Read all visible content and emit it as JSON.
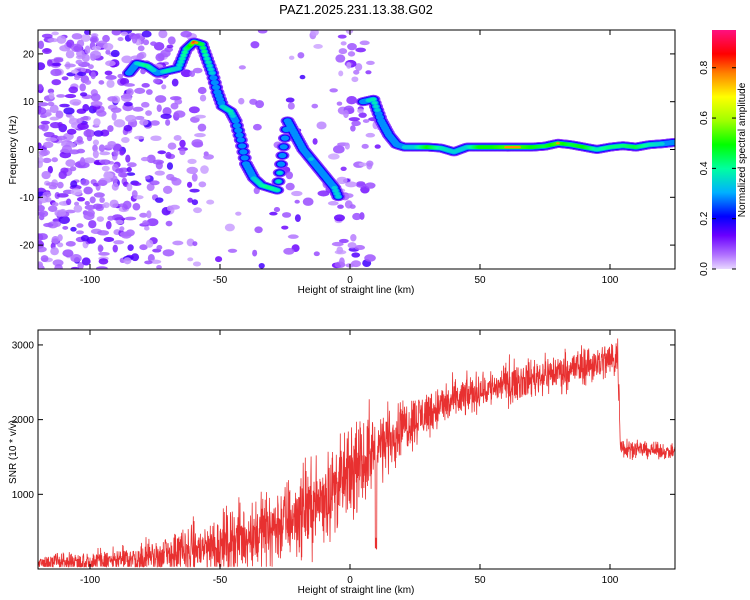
{
  "title": "PAZ1.2025.231.13.38.G02",
  "chart_data": [
    {
      "type": "heatmap",
      "xlabel": "Height of straight line (km)",
      "ylabel": "Frequency (Hz)",
      "xlim": [
        -120,
        125
      ],
      "ylim": [
        -25,
        25
      ],
      "xticks": [
        -100,
        -50,
        0,
        50,
        100
      ],
      "yticks": [
        -20,
        -10,
        0,
        10,
        20
      ],
      "colorbar": {
        "label": "Normalized spectral amplitude",
        "range": [
          0.0,
          0.95
        ],
        "ticks": [
          0.0,
          0.2,
          0.4,
          0.6,
          0.8
        ]
      },
      "ridge": [
        [
          -85,
          16,
          0.35
        ],
        [
          -82,
          18,
          0.45
        ],
        [
          -78,
          17.5,
          0.55
        ],
        [
          -74,
          16,
          0.4
        ],
        [
          -70,
          16.5,
          0.5
        ],
        [
          -66,
          17,
          0.45
        ],
        [
          -63,
          21,
          0.55
        ],
        [
          -60,
          22.5,
          0.75
        ],
        [
          -57,
          22,
          0.6
        ],
        [
          -55,
          19,
          0.5
        ],
        [
          -53,
          16,
          0.45
        ],
        [
          -51,
          12,
          0.4
        ],
        [
          -49,
          9,
          0.45
        ],
        [
          -46,
          8,
          0.5
        ],
        [
          -44,
          6,
          0.4
        ],
        [
          -42,
          2,
          0.4
        ],
        [
          -40,
          -3,
          0.4
        ],
        [
          -37,
          -6,
          0.45
        ],
        [
          -34,
          -7.5,
          0.5
        ],
        [
          -31,
          -8,
          0.55
        ],
        [
          -28,
          -8.5,
          0.5
        ],
        [
          -24,
          6,
          0.35
        ],
        [
          -21,
          3,
          0.35
        ],
        [
          -18,
          0,
          0.4
        ],
        [
          -15,
          -2,
          0.45
        ],
        [
          -12,
          -4,
          0.4
        ],
        [
          -9,
          -6,
          0.4
        ],
        [
          -6,
          -8,
          0.45
        ],
        [
          -4,
          -10.5,
          0.45
        ],
        [
          5,
          10,
          0.4
        ],
        [
          9,
          10.5,
          0.5
        ],
        [
          12,
          6,
          0.4
        ],
        [
          15,
          3,
          0.4
        ],
        [
          18,
          1,
          0.4
        ],
        [
          21,
          0.5,
          0.45
        ],
        [
          25,
          0.5,
          0.45
        ],
        [
          30,
          0.5,
          0.65
        ],
        [
          35,
          0.3,
          0.5
        ],
        [
          40,
          -0.5,
          0.45
        ],
        [
          45,
          0.5,
          0.45
        ],
        [
          50,
          0.5,
          0.65
        ],
        [
          55,
          0.5,
          0.65
        ],
        [
          60,
          0.5,
          0.7
        ],
        [
          65,
          0.5,
          0.7
        ],
        [
          70,
          0.5,
          0.65
        ],
        [
          75,
          0.7,
          0.6
        ],
        [
          80,
          1.3,
          0.7
        ],
        [
          85,
          1.0,
          0.6
        ],
        [
          90,
          0.5,
          0.65
        ],
        [
          95,
          0.0,
          0.5
        ],
        [
          100,
          0.5,
          0.55
        ],
        [
          105,
          0.8,
          0.55
        ],
        [
          110,
          0.5,
          0.6
        ],
        [
          115,
          1.0,
          0.5
        ],
        [
          120,
          1.2,
          0.45
        ],
        [
          125,
          1.5,
          0.4
        ]
      ]
    },
    {
      "type": "line",
      "xlabel": "Height of straight line (km)",
      "ylabel": "SNR (10 * v/v)",
      "xlim": [
        -120,
        125
      ],
      "ylim": [
        0,
        3200
      ],
      "xticks": [
        -100,
        -50,
        0,
        50,
        100
      ],
      "yticks": [
        1000,
        2000,
        3000
      ],
      "color": "#e83030",
      "envelope": [
        [
          -120,
          80,
          100
        ],
        [
          -110,
          90,
          120
        ],
        [
          -100,
          100,
          130
        ],
        [
          -90,
          110,
          160
        ],
        [
          -80,
          140,
          200
        ],
        [
          -70,
          180,
          260
        ],
        [
          -60,
          250,
          320
        ],
        [
          -50,
          330,
          380
        ],
        [
          -40,
          430,
          420
        ],
        [
          -30,
          560,
          470
        ],
        [
          -20,
          720,
          500
        ],
        [
          -10,
          950,
          520
        ],
        [
          0,
          1250,
          500
        ],
        [
          10,
          1600,
          440
        ],
        [
          20,
          1900,
          330
        ],
        [
          30,
          2100,
          280
        ],
        [
          40,
          2250,
          250
        ],
        [
          50,
          2380,
          230
        ],
        [
          60,
          2480,
          230
        ],
        [
          70,
          2560,
          230
        ],
        [
          80,
          2640,
          230
        ],
        [
          90,
          2720,
          230
        ],
        [
          100,
          2800,
          240
        ],
        [
          103,
          2850,
          260
        ],
        [
          104,
          1650,
          150
        ],
        [
          110,
          1600,
          100
        ],
        [
          120,
          1580,
          90
        ],
        [
          125,
          1560,
          80
        ]
      ],
      "dips": [
        [
          10,
          250
        ]
      ]
    }
  ]
}
